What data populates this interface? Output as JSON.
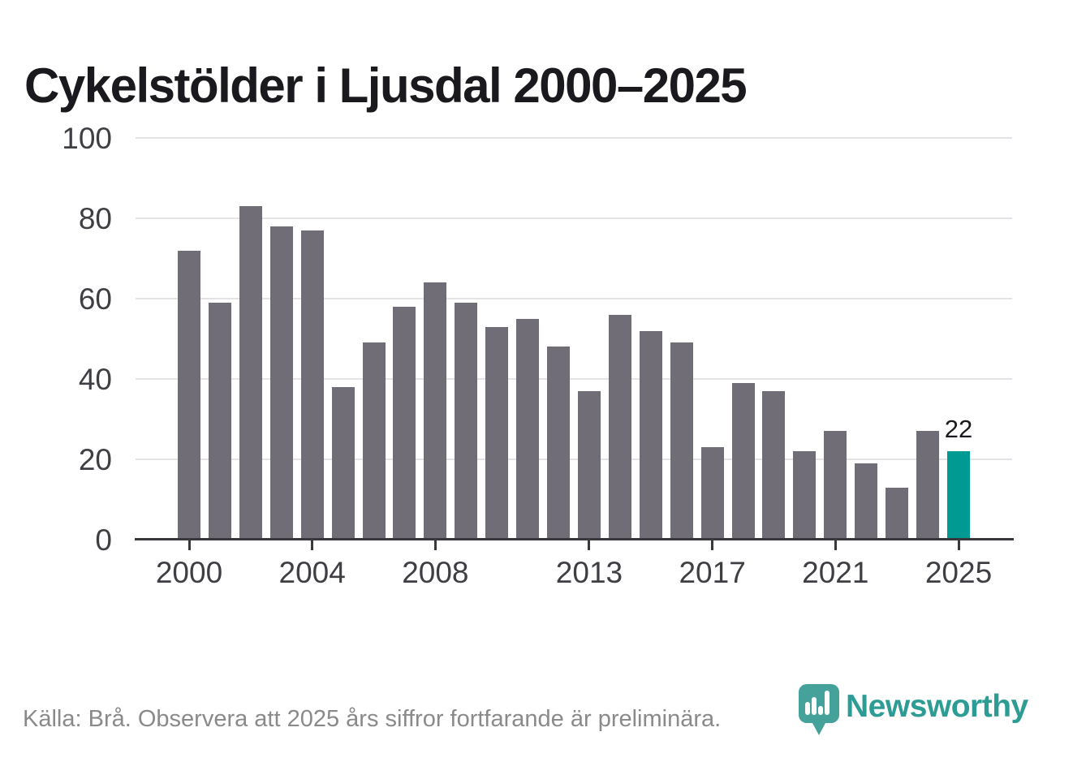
{
  "title": "Cykelstölder i Ljusdal 2000–2025",
  "chart_data": {
    "type": "bar",
    "title": "Cykelstölder i Ljusdal 2000–2025",
    "categories": [
      2000,
      2001,
      2002,
      2003,
      2004,
      2005,
      2006,
      2007,
      2008,
      2009,
      2010,
      2011,
      2012,
      2013,
      2014,
      2015,
      2016,
      2017,
      2018,
      2019,
      2020,
      2021,
      2022,
      2023,
      2024,
      2025
    ],
    "values": [
      72,
      59,
      83,
      78,
      77,
      38,
      49,
      58,
      64,
      59,
      53,
      55,
      48,
      37,
      56,
      52,
      49,
      23,
      39,
      37,
      22,
      27,
      19,
      13,
      27,
      22
    ],
    "xlabel": "",
    "ylabel": "",
    "ylim": [
      0,
      100
    ],
    "yticks": [
      0,
      20,
      40,
      60,
      80,
      100
    ],
    "xtick_years": [
      2000,
      2004,
      2008,
      2013,
      2017,
      2021,
      2025
    ],
    "grid": true,
    "legend_position": "none",
    "highlight_year": 2025,
    "highlight_value_label": "22",
    "bar_color": "#716d76",
    "highlight_color": "#009a93",
    "gridline_color": "#e4e3e7",
    "axis_color": "#3a383d"
  },
  "footer": {
    "source": "Källa: Brå. Observera att 2025 års siffror fortfarande är preliminära."
  },
  "logo": {
    "text": "Newsworthy",
    "text_color": "#2d9c94",
    "pin_color": "#44a29a"
  }
}
